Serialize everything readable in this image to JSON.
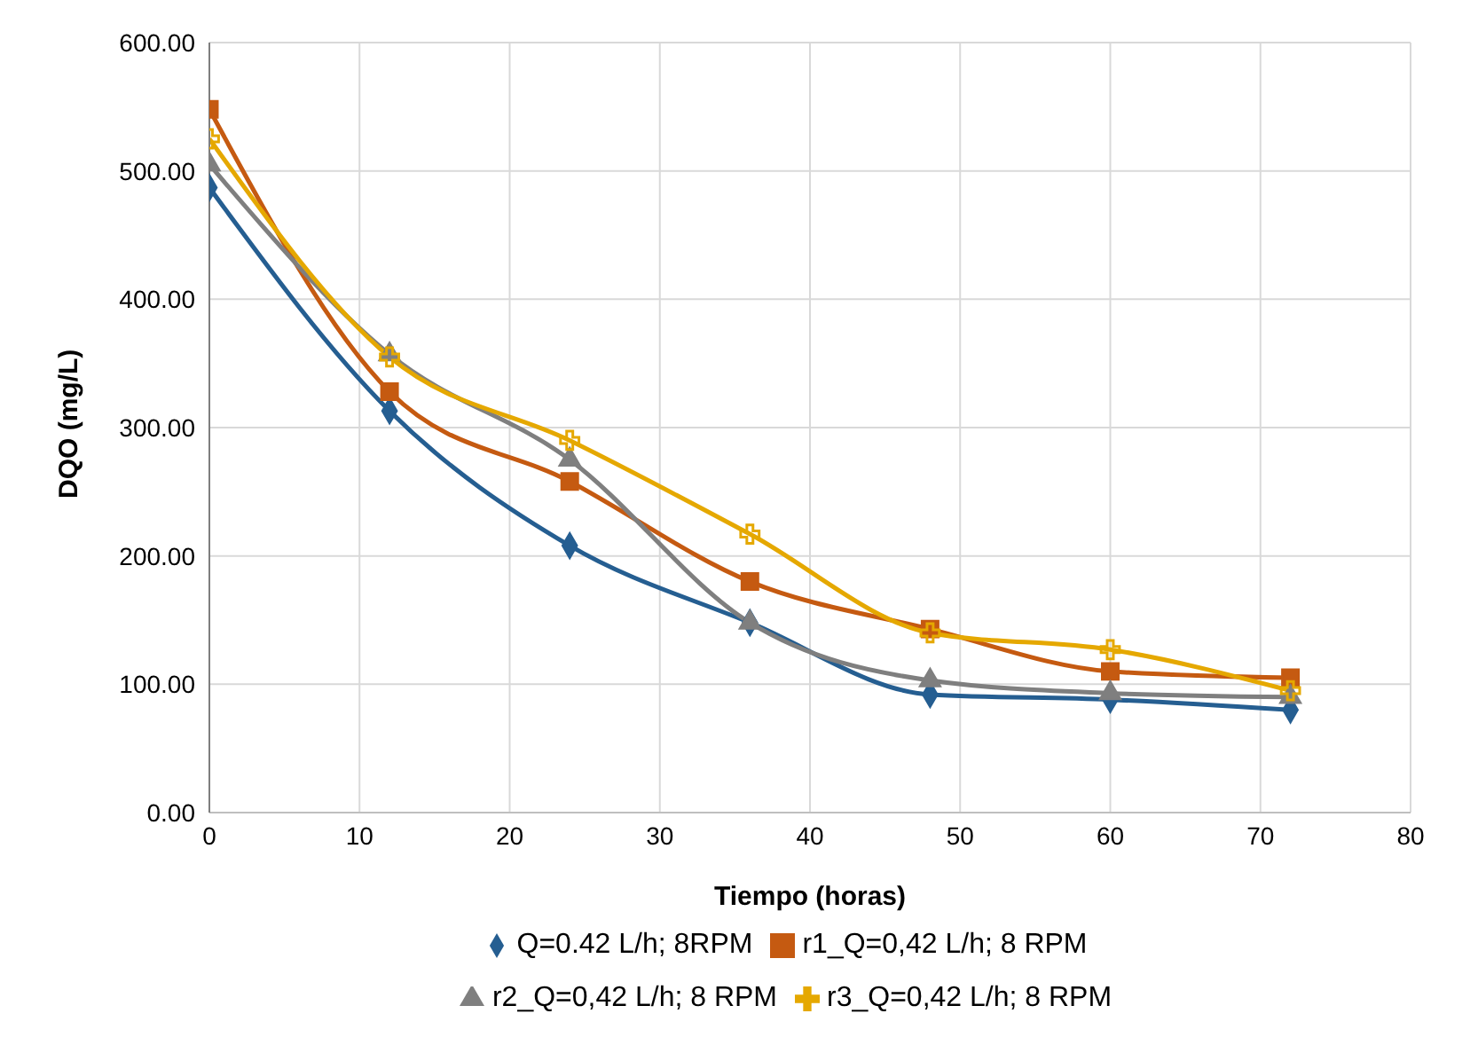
{
  "chart_data": {
    "type": "line",
    "xlabel": "Tiempo (horas)",
    "ylabel": "DQO (mg/L)",
    "x": [
      0,
      12,
      24,
      36,
      48,
      60,
      72
    ],
    "series": [
      {
        "name": "Q=0.42 L/h; 8RPM",
        "color": "#255e91",
        "marker": "diamond",
        "values": [
          487,
          313,
          208,
          148,
          92,
          88,
          80
        ]
      },
      {
        "name": "r1_Q=0,42 L/h; 8 RPM",
        "color": "#c55a11",
        "marker": "square",
        "values": [
          548,
          328,
          258,
          180,
          143,
          110,
          105
        ]
      },
      {
        "name": "r2_Q=0,42 L/h; 8 RPM",
        "color": "#7f7f7f",
        "marker": "triangle",
        "values": [
          505,
          357,
          275,
          148,
          103,
          93,
          90
        ]
      },
      {
        "name": "r3_Q=0,42 L/h; 8 RPM",
        "color": "#e5a800",
        "marker": "cross",
        "values": [
          525,
          355,
          290,
          217,
          140,
          127,
          95
        ]
      }
    ],
    "xlim": [
      0,
      80
    ],
    "xticks": [
      0,
      10,
      20,
      30,
      40,
      50,
      60,
      70,
      80
    ],
    "ylim": [
      0,
      600
    ],
    "yticks": [
      {
        "value": 0,
        "label": "0.00"
      },
      {
        "value": 100,
        "label": "100.00"
      },
      {
        "value": 200,
        "label": "200.00"
      },
      {
        "value": 300,
        "label": "300.00"
      },
      {
        "value": 400,
        "label": "400.00"
      },
      {
        "value": 500,
        "label": "500.00"
      },
      {
        "value": 600,
        "label": "600.00"
      }
    ],
    "grid": true,
    "legend": "bottom",
    "line_style": "solid"
  }
}
